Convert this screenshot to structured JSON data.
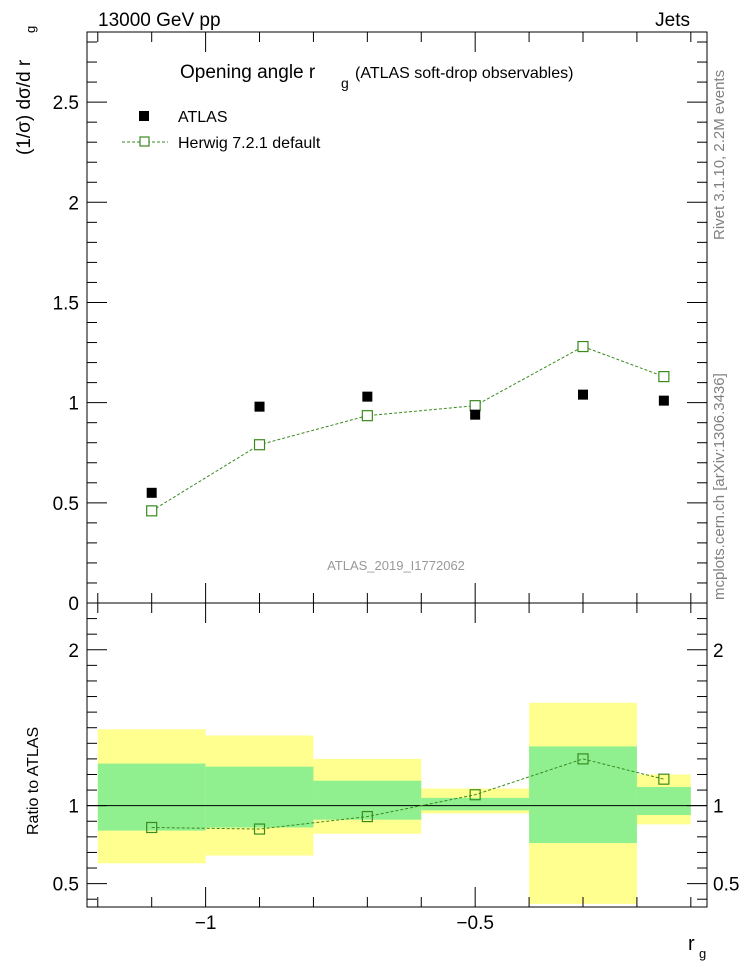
{
  "header": {
    "left": "13000 GeV pp",
    "right": "Jets"
  },
  "side_labels": {
    "rivet": "Rivet 3.1.10,  2.2M events",
    "mcplots": "mcplots.cern.ch [arXiv:1306.3436]"
  },
  "chart_data": {
    "type": "scatter",
    "title": "Opening angle r",
    "title_sub": "g",
    "title_suffix": "(ATLAS soft-drop observables)",
    "ylabel": "(1/σ) dσ/d r",
    "ylabel_sub": "g",
    "xlabel": "r",
    "xlabel_sub": "g",
    "watermark": "ATLAS_2019_I1772062",
    "xlim": [
      -1.22,
      -0.07
    ],
    "ylim": [
      0,
      2.85
    ],
    "x_ticks": [
      -1,
      -0.5
    ],
    "x_tick_labels": [
      "−1",
      "−0.5"
    ],
    "y_ticks": [
      0,
      0.5,
      1,
      1.5,
      2,
      2.5
    ],
    "y_tick_labels": [
      "0",
      "0.5",
      "1",
      "1.5",
      "2",
      "2.5"
    ],
    "legend_position": "top-left",
    "grid": false,
    "bins": [
      [
        -1.2,
        -1.0
      ],
      [
        -1.0,
        -0.8
      ],
      [
        -0.8,
        -0.6
      ],
      [
        -0.6,
        -0.4
      ],
      [
        -0.4,
        -0.2
      ],
      [
        -0.2,
        -0.1
      ]
    ],
    "series": [
      {
        "name": "ATLAS",
        "marker": "filled-square",
        "color": "#000000",
        "x": [
          -1.1,
          -0.9,
          -0.7,
          -0.5,
          -0.3,
          -0.15
        ],
        "y": [
          0.55,
          0.98,
          1.03,
          0.94,
          1.04,
          1.01
        ]
      },
      {
        "name": "Herwig 7.2.1 default",
        "marker": "open-square",
        "line": "dashed",
        "color": "#3a8a1e",
        "x": [
          -1.1,
          -0.9,
          -0.7,
          -0.5,
          -0.3,
          -0.15
        ],
        "y": [
          0.46,
          0.79,
          0.935,
          0.985,
          1.28,
          1.13
        ]
      }
    ],
    "ratio": {
      "ylabel": "Ratio to ATLAS",
      "ylim": [
        0.35,
        2.3
      ],
      "y_ticks": [
        0.5,
        1,
        2
      ],
      "y_tick_labels": [
        "0.5",
        "1",
        "2"
      ],
      "band_inner_color": "#90f090",
      "band_outer_color": "#ffff90",
      "band_inner": [
        [
          0.84,
          1.27
        ],
        [
          0.86,
          1.25
        ],
        [
          0.91,
          1.16
        ],
        [
          0.97,
          1.05
        ],
        [
          0.76,
          1.38
        ],
        [
          0.94,
          1.12
        ]
      ],
      "band_outer": [
        [
          0.63,
          1.49
        ],
        [
          0.68,
          1.45
        ],
        [
          0.82,
          1.3
        ],
        [
          0.95,
          1.11
        ],
        [
          0.37,
          1.66
        ],
        [
          0.88,
          1.2
        ]
      ],
      "model_ratio": [
        0.86,
        0.85,
        0.93,
        1.07,
        1.3,
        1.17
      ]
    }
  }
}
